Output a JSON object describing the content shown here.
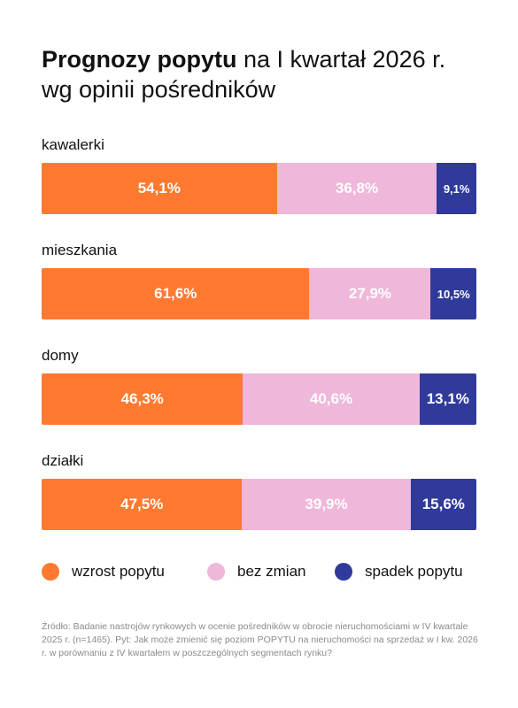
{
  "title": {
    "bold": "Prognozy popytu",
    "rest": " na I kwartał 2026 r.",
    "line2": "wg opinii pośredników"
  },
  "colors": {
    "wzrost": "#FF7A30",
    "bez_zmian": "#EFB7DA",
    "spadek": "#2F3A9B"
  },
  "chart_data": {
    "type": "bar",
    "orientation": "horizontal",
    "stacked": true,
    "categories": [
      "kawalerki",
      "mieszkania",
      "domy",
      "działki"
    ],
    "series": [
      {
        "name": "wzrost popytu",
        "values": [
          54.1,
          61.6,
          46.3,
          47.5
        ],
        "labels": [
          "54,1%",
          "61,6%",
          "46,3%",
          "47,5%"
        ]
      },
      {
        "name": "bez zmian",
        "values": [
          36.8,
          27.9,
          40.6,
          39.9
        ],
        "labels": [
          "36,8%",
          "27,9%",
          "40,6%",
          "39,9%"
        ]
      },
      {
        "name": "spadek popytu",
        "values": [
          9.1,
          10.5,
          13.1,
          15.6
        ],
        "labels": [
          "9,1%",
          "10,5%",
          "13,1%",
          "15,6%"
        ]
      }
    ],
    "xlim": [
      0,
      100
    ],
    "legend_position": "bottom",
    "grid": false
  },
  "legend": [
    {
      "label": "wzrost popytu",
      "color": "#FF7A30"
    },
    {
      "label": "bez zmian",
      "color": "#EFB7DA"
    },
    {
      "label": "spadek popytu",
      "color": "#2F3A9B"
    }
  ],
  "source": "Źródło: Badanie nastrojów rynkowych w ocenie pośredników w obrocie nieruchomościami w IV kwartale 2025 r. (n=1465). Pyt: Jak może zmienić się poziom POPYTU na nieruchomości na sprzedaż w I kw. 2026 r. w porównaniu z IV kwartałem w poszczególnych segmentach rynku?"
}
